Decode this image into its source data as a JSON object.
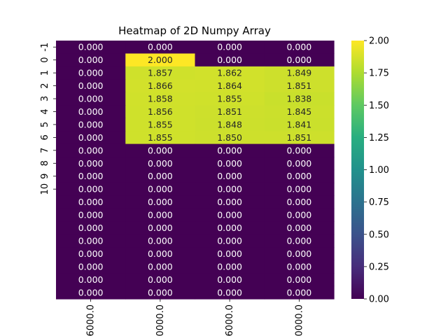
{
  "chart_data": {
    "type": "heatmap",
    "title": "Heatmap of 2D Numpy Array",
    "xlabel": "",
    "ylabel": "",
    "x_tick_labels": [
      "6000.0",
      "0000.0",
      "6000.0",
      "0000.0"
    ],
    "y_tick_labels": [
      "-1",
      "0",
      "1",
      "2",
      "3",
      "4",
      "5",
      "6",
      "7",
      "8",
      "9",
      "10"
    ],
    "colormap": "viridis",
    "colorbar": {
      "min": 0.0,
      "max": 2.0,
      "ticks": [
        "0.00",
        "0.25",
        "0.50",
        "0.75",
        "1.00",
        "1.25",
        "1.50",
        "1.75",
        "2.00"
      ]
    },
    "value_format": "0.000",
    "values": [
      [
        0.0,
        0.0,
        0.0,
        0.0
      ],
      [
        0.0,
        2.0,
        0.0,
        0.0
      ],
      [
        0.0,
        1.857,
        1.862,
        1.849
      ],
      [
        0.0,
        1.866,
        1.864,
        1.851
      ],
      [
        0.0,
        1.858,
        1.855,
        1.838
      ],
      [
        0.0,
        1.856,
        1.851,
        1.845
      ],
      [
        0.0,
        1.855,
        1.848,
        1.841
      ],
      [
        0.0,
        1.855,
        1.85,
        1.851
      ],
      [
        0.0,
        0.0,
        0.0,
        0.0
      ],
      [
        0.0,
        0.0,
        0.0,
        0.0
      ],
      [
        0.0,
        0.0,
        0.0,
        0.0
      ],
      [
        0.0,
        0.0,
        0.0,
        0.0
      ],
      [
        0.0,
        0.0,
        0.0,
        0.0
      ],
      [
        0.0,
        0.0,
        0.0,
        0.0
      ],
      [
        0.0,
        0.0,
        0.0,
        0.0
      ],
      [
        0.0,
        0.0,
        0.0,
        0.0
      ],
      [
        0.0,
        0.0,
        0.0,
        0.0
      ],
      [
        0.0,
        0.0,
        0.0,
        0.0
      ],
      [
        0.0,
        0.0,
        0.0,
        0.0
      ],
      [
        0.0,
        0.0,
        0.0,
        0.0
      ]
    ]
  }
}
